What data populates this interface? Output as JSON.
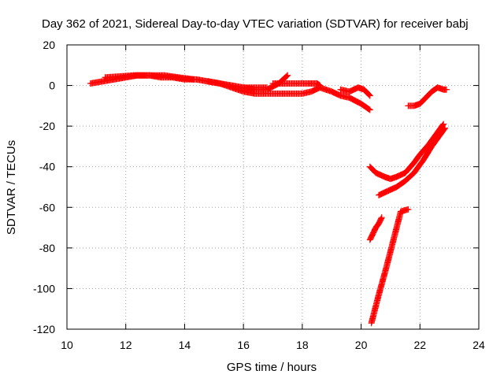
{
  "chart_data": {
    "type": "scatter",
    "title": "Day 362 of 2021, Sidereal Day-to-day VTEC variation (SDTVAR) for receiver babj",
    "xlabel": "GPS time / hours",
    "ylabel": "SDTVAR / TECUs",
    "xlim": [
      10,
      24
    ],
    "ylim": [
      -120,
      20
    ],
    "xticks": [
      "10",
      "12",
      "14",
      "16",
      "18",
      "20",
      "22",
      "24"
    ],
    "yticks": [
      "20",
      "0",
      "-20",
      "-40",
      "-60",
      "-80",
      "-100",
      "-120"
    ],
    "grid": true,
    "marker": "plus",
    "color": "#ff0000",
    "series": [
      {
        "x": [
          10.8,
          11.2,
          11.6,
          12.0,
          12.4,
          12.8,
          13.2,
          13.6,
          14.0,
          14.4,
          14.8
        ],
        "y": [
          1,
          2,
          3,
          4,
          5,
          5,
          4,
          4,
          3,
          3,
          2
        ]
      },
      {
        "x": [
          11.3,
          11.8,
          12.3,
          12.8,
          13.3,
          13.8,
          14.3
        ],
        "y": [
          4,
          4.5,
          5,
          5,
          5,
          4,
          3
        ]
      },
      {
        "x": [
          14.8,
          15.2,
          15.6,
          16.0,
          16.4,
          16.8
        ],
        "y": [
          2,
          1,
          0,
          -1,
          -1,
          -1
        ]
      },
      {
        "x": [
          14.8,
          15.2,
          15.6,
          16.0,
          16.4,
          16.8,
          17.2,
          17.6,
          18.0,
          18.3,
          18.6,
          19.0,
          19.3,
          19.6,
          20.0,
          20.3
        ],
        "y": [
          2,
          1,
          -1,
          -3,
          -4,
          -4,
          -4,
          -4,
          -4,
          -3,
          -1,
          -3,
          -5,
          -6,
          -9,
          -12
        ]
      },
      {
        "x": [
          16.0,
          16.4,
          16.8,
          17.2,
          17.5
        ],
        "y": [
          -1,
          -2,
          -2,
          1,
          5
        ]
      },
      {
        "x": [
          17.0,
          17.4,
          17.8,
          18.2,
          18.5,
          18.6
        ],
        "y": [
          1,
          1,
          1,
          1,
          1,
          0
        ]
      },
      {
        "x": [
          19.3,
          19.6,
          19.9,
          20.1,
          20.3
        ],
        "y": [
          -2,
          -3,
          -1,
          -2,
          -5
        ]
      },
      {
        "x": [
          20.3,
          20.5,
          20.8,
          21.0,
          21.2,
          21.5,
          21.8,
          22.0,
          22.3,
          22.6,
          22.8
        ],
        "y": [
          -40,
          -43,
          -45,
          -46,
          -45,
          -43,
          -38,
          -34,
          -29,
          -23,
          -19
        ]
      },
      {
        "x": [
          20.6,
          20.9,
          21.2,
          21.5,
          21.8,
          22.1,
          22.4,
          22.7,
          22.85
        ],
        "y": [
          -54,
          -52,
          -50,
          -47,
          -43,
          -37,
          -30,
          -24,
          -21
        ]
      },
      {
        "x": [
          20.3,
          20.4,
          20.5,
          20.6,
          20.7
        ],
        "y": [
          -76,
          -73,
          -70,
          -68,
          -65
        ]
      },
      {
        "x": [
          20.35,
          20.6,
          20.85,
          21.1,
          21.35,
          21.6
        ],
        "y": [
          -117,
          -103,
          -90,
          -76,
          -62,
          -61
        ]
      },
      {
        "x": [
          21.6,
          21.8,
          22.0,
          22.2,
          22.4,
          22.6,
          22.8,
          22.9
        ],
        "y": [
          -10,
          -10,
          -9,
          -6,
          -3,
          -1,
          -2,
          -2
        ]
      }
    ]
  }
}
